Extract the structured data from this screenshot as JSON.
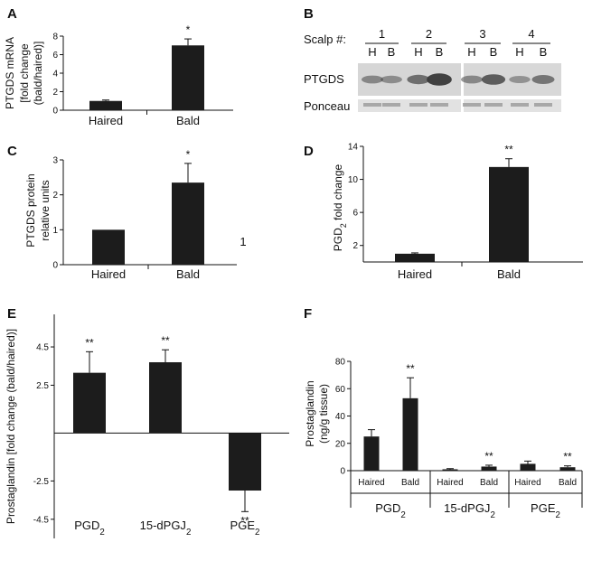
{
  "figure": {
    "colors": {
      "bar": "#1c1c1c",
      "axis": "#111111",
      "band_dark": "#3a3a3a",
      "band_light": "#9a9a9a"
    }
  },
  "panel_b": {
    "letter": "B",
    "scalp_label": "Scalp #:",
    "scalps": [
      "1",
      "2",
      "3",
      "4"
    ],
    "lane_labels": [
      "H",
      "B",
      "H",
      "B",
      "H",
      "B",
      "H",
      "B"
    ],
    "row_labels": [
      "PTGDS",
      "Ponceau"
    ],
    "band_intensity": [
      0.35,
      0.3,
      0.55,
      0.95,
      0.35,
      0.7,
      0.25,
      0.5
    ]
  },
  "stray_mark": "1",
  "chart_data": [
    {
      "id": "A",
      "letter": "A",
      "type": "bar",
      "categories": [
        "Haired",
        "Bald"
      ],
      "values": [
        1.0,
        7.0
      ],
      "errors": [
        0.1,
        0.7
      ],
      "significance": [
        "",
        "*"
      ],
      "ylabel_lines": [
        "PTGDS  mRNA",
        "[fold change",
        "(bald/haired)]"
      ],
      "ylim": [
        0,
        8
      ],
      "yticks": [
        0,
        2,
        4,
        6,
        8
      ]
    },
    {
      "id": "C",
      "letter": "C",
      "type": "bar",
      "categories": [
        "Haired",
        "Bald"
      ],
      "values": [
        1.0,
        2.35
      ],
      "errors": [
        0.0,
        0.55
      ],
      "significance": [
        "",
        "*"
      ],
      "ylabel_lines": [
        "PTGDS protein",
        "relative units"
      ],
      "ylim": [
        0,
        3
      ],
      "yticks": [
        0,
        1,
        2,
        3
      ]
    },
    {
      "id": "D",
      "letter": "D",
      "type": "bar",
      "categories": [
        "Haired",
        "Bald"
      ],
      "values": [
        1.0,
        11.5
      ],
      "errors": [
        0.1,
        1.0
      ],
      "significance": [
        "",
        "**"
      ],
      "ylabel_lines": [
        "PGD2 fold change"
      ],
      "ylim": [
        0,
        14
      ],
      "yticks": [
        2,
        6,
        10,
        14
      ]
    },
    {
      "id": "E",
      "letter": "E",
      "type": "bar",
      "categories": [
        "PGD2",
        "15-dPGJ2",
        "PGE2"
      ],
      "values": [
        3.15,
        3.7,
        -3.0
      ],
      "errors": [
        1.1,
        0.65,
        1.1
      ],
      "significance": [
        "**",
        "**",
        "**"
      ],
      "ylabel_lines": [
        "Prostaglandin [fold change (bald/haired)]"
      ],
      "ylim": [
        -5.5,
        6.2
      ],
      "yticks": [
        4.5,
        2.5,
        -2.5,
        -4.5
      ]
    },
    {
      "id": "F",
      "letter": "F",
      "type": "bar",
      "groups": [
        "PGD2",
        "15-dPGJ2",
        "PGE2"
      ],
      "subcategories": [
        "Haired",
        "Bald"
      ],
      "values": [
        25,
        53,
        1,
        3,
        5,
        2.5
      ],
      "errors": [
        5,
        15,
        0.5,
        1,
        2,
        1
      ],
      "significance": [
        "",
        "**",
        "",
        "**",
        "",
        "**"
      ],
      "ylabel_lines": [
        "Prostaglandin",
        "(ng/g tissue)"
      ],
      "ylim": [
        0,
        80
      ],
      "yticks": [
        0,
        20,
        40,
        60,
        80
      ]
    }
  ]
}
